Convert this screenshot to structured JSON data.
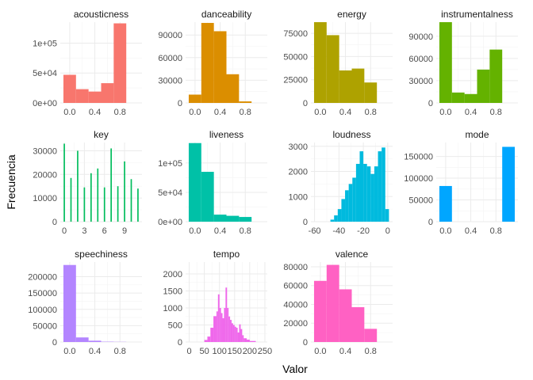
{
  "chart_data": {
    "type": "bar",
    "title": "",
    "xlabel": "Valor",
    "ylabel": "Frecuencia",
    "grid": true,
    "legend": "none",
    "panels": [
      {
        "name": "acousticness",
        "color": "#F8766D",
        "xlim": [
          -0.15,
          1.15
        ],
        "ylim": [
          0,
          135000
        ],
        "xticks": [
          0,
          0.4,
          0.8
        ],
        "xtick_labels": [
          "0.0",
          "0.4",
          "0.8"
        ],
        "yticks": [
          0,
          50000,
          100000
        ],
        "ytick_labels": [
          "0e+00",
          "5e+04",
          "1e+05"
        ],
        "bins": [
          [
            -0.1,
            0.1,
            47000
          ],
          [
            0.1,
            0.3,
            23000
          ],
          [
            0.3,
            0.5,
            19000
          ],
          [
            0.5,
            0.7,
            33000
          ],
          [
            0.7,
            0.9,
            133000
          ]
        ]
      },
      {
        "name": "danceability",
        "color": "#DB8E00",
        "xlim": [
          -0.15,
          1.15
        ],
        "ylim": [
          0,
          107000
        ],
        "xticks": [
          0,
          0.4,
          0.8
        ],
        "xtick_labels": [
          "0.0",
          "0.4",
          "0.8"
        ],
        "yticks": [
          0,
          30000,
          60000,
          90000
        ],
        "ytick_labels": [
          "0",
          "30000",
          "60000",
          "90000"
        ],
        "bins": [
          [
            -0.1,
            0.1,
            11000
          ],
          [
            0.1,
            0.3,
            106000
          ],
          [
            0.3,
            0.5,
            95000
          ],
          [
            0.5,
            0.7,
            38000
          ],
          [
            0.7,
            0.9,
            2000
          ]
        ]
      },
      {
        "name": "energy",
        "color": "#AEA200",
        "xlim": [
          -0.15,
          1.15
        ],
        "ylim": [
          0,
          87000
        ],
        "xticks": [
          0,
          0.4,
          0.8
        ],
        "xtick_labels": [
          "0.0",
          "0.4",
          "0.8"
        ],
        "yticks": [
          0,
          25000,
          50000,
          75000
        ],
        "ytick_labels": [
          "0",
          "25000",
          "50000",
          "75000"
        ],
        "bins": [
          [
            -0.1,
            0.1,
            87000
          ],
          [
            0.1,
            0.3,
            73000
          ],
          [
            0.3,
            0.5,
            35000
          ],
          [
            0.5,
            0.7,
            37000
          ],
          [
            0.7,
            0.9,
            22000
          ]
        ]
      },
      {
        "name": "instrumentalness",
        "color": "#64B200",
        "xlim": [
          -0.15,
          1.15
        ],
        "ylim": [
          0,
          109000
        ],
        "xticks": [
          0,
          0.4,
          0.8
        ],
        "xtick_labels": [
          "0.0",
          "0.4",
          "0.8"
        ],
        "yticks": [
          0,
          30000,
          60000,
          90000
        ],
        "ytick_labels": [
          "0",
          "30000",
          "60000",
          "90000"
        ],
        "bins": [
          [
            -0.1,
            0.1,
            109000
          ],
          [
            0.1,
            0.3,
            14000
          ],
          [
            0.3,
            0.5,
            12000
          ],
          [
            0.5,
            0.7,
            45000
          ],
          [
            0.7,
            0.9,
            72000
          ]
        ]
      },
      {
        "name": "key",
        "color": "#00BD5C",
        "xlim": [
          -0.6,
          11.6
        ],
        "ylim": [
          0,
          33500
        ],
        "xticks": [
          0,
          3,
          6,
          9
        ],
        "xtick_labels": [
          "0",
          "3",
          "6",
          "9"
        ],
        "yticks": [
          0,
          10000,
          20000,
          30000
        ],
        "ytick_labels": [
          "0",
          "10000",
          "20000",
          "30000"
        ],
        "bins": [
          [
            -0.1,
            0.1,
            33000
          ],
          [
            0.9,
            1.1,
            18500
          ],
          [
            1.9,
            2.1,
            30000
          ],
          [
            2.9,
            3.1,
            14500
          ],
          [
            3.9,
            4.1,
            20500
          ],
          [
            4.9,
            5.1,
            22500
          ],
          [
            5.9,
            6.1,
            14500
          ],
          [
            6.9,
            7.1,
            31000
          ],
          [
            7.9,
            8.1,
            15000
          ],
          [
            8.9,
            9.1,
            25500
          ],
          [
            9.9,
            10.1,
            18000
          ],
          [
            10.9,
            11.1,
            14000
          ]
        ]
      },
      {
        "name": "liveness",
        "color": "#00C1A7",
        "xlim": [
          -0.15,
          1.15
        ],
        "ylim": [
          0,
          135000
        ],
        "xticks": [
          0,
          0.4,
          0.8
        ],
        "xtick_labels": [
          "0.0",
          "0.4",
          "0.8"
        ],
        "yticks": [
          0,
          50000,
          100000
        ],
        "ytick_labels": [
          "0e+00",
          "5e+04",
          "1e+05"
        ],
        "bins": [
          [
            -0.1,
            0.1,
            134000
          ],
          [
            0.1,
            0.3,
            85000
          ],
          [
            0.3,
            0.5,
            12000
          ],
          [
            0.5,
            0.7,
            10000
          ],
          [
            0.7,
            0.9,
            8000
          ]
        ]
      },
      {
        "name": "loudness",
        "color": "#00BADE",
        "xlim": [
          -63,
          4
        ],
        "ylim": [
          0,
          3150
        ],
        "xticks": [
          -60,
          -40,
          -20,
          0
        ],
        "xtick_labels": [
          "-60",
          "-40",
          "-20",
          "0"
        ],
        "yticks": [
          0,
          1000,
          2000,
          3000
        ],
        "ytick_labels": [
          "0",
          "1000",
          "2000",
          "3000"
        ],
        "bins": [
          [
            -47,
            -44,
            80
          ],
          [
            -44,
            -41,
            250
          ],
          [
            -41,
            -38,
            500
          ],
          [
            -38,
            -35,
            900
          ],
          [
            -35,
            -32,
            1250
          ],
          [
            -32,
            -29,
            1500
          ],
          [
            -29,
            -26,
            1750
          ],
          [
            -26,
            -23,
            2300
          ],
          [
            -23,
            -20,
            2800
          ],
          [
            -20,
            -17,
            2300
          ],
          [
            -17,
            -14,
            2200
          ],
          [
            -14,
            -11,
            1900
          ],
          [
            -11,
            -8,
            2200
          ],
          [
            -8,
            -5,
            2800
          ],
          [
            -5,
            -2,
            2950
          ],
          [
            -2,
            1,
            500
          ]
        ]
      },
      {
        "name": "mode",
        "color": "#00A6FF",
        "xlim": [
          -0.15,
          1.15
        ],
        "ylim": [
          0,
          182000
        ],
        "xticks": [
          0,
          0.4,
          0.8
        ],
        "xtick_labels": [
          "0.0",
          "0.4",
          "0.8"
        ],
        "yticks": [
          0,
          50000,
          100000,
          150000
        ],
        "ytick_labels": [
          "0",
          "50000",
          "100000",
          "150000"
        ],
        "bins": [
          [
            -0.1,
            0.1,
            82000
          ],
          [
            0.9,
            1.1,
            172000
          ]
        ]
      },
      {
        "name": "speechiness",
        "color": "#B385FF",
        "xlim": [
          -0.15,
          1.15
        ],
        "ylim": [
          0,
          245000
        ],
        "xticks": [
          0,
          0.4,
          0.8
        ],
        "xtick_labels": [
          "0.0",
          "0.4",
          "0.8"
        ],
        "yticks": [
          0,
          50000,
          100000,
          150000,
          200000
        ],
        "ytick_labels": [
          "0",
          "50000",
          "100000",
          "150000",
          "200000"
        ],
        "bins": [
          [
            -0.1,
            0.1,
            236000
          ],
          [
            0.1,
            0.3,
            14000
          ],
          [
            0.3,
            0.5,
            4000
          ],
          [
            0.5,
            0.7,
            1000
          ],
          [
            0.7,
            0.9,
            500
          ]
        ]
      },
      {
        "name": "tempo",
        "color": "#EF67EB",
        "xlim": [
          -12,
          258
        ],
        "ylim": [
          0,
          2350
        ],
        "xticks": [
          0,
          50,
          100,
          150,
          200,
          250
        ],
        "xtick_labels": [
          "0",
          "50",
          "100",
          "150",
          "200",
          "250"
        ],
        "yticks": [
          0,
          500,
          1000,
          1500,
          2000
        ],
        "ytick_labels": [
          "0",
          "500",
          "1000",
          "1500",
          "2000"
        ],
        "bins": [
          [
            50,
            60,
            60
          ],
          [
            60,
            70,
            160
          ],
          [
            70,
            80,
            420
          ],
          [
            80,
            90,
            760
          ],
          [
            90,
            95,
            900
          ],
          [
            95,
            100,
            1400
          ],
          [
            100,
            105,
            1000
          ],
          [
            105,
            110,
            850
          ],
          [
            110,
            115,
            700
          ],
          [
            115,
            120,
            1000
          ],
          [
            120,
            125,
            1600
          ],
          [
            125,
            130,
            1000
          ],
          [
            130,
            135,
            750
          ],
          [
            135,
            140,
            650
          ],
          [
            140,
            145,
            550
          ],
          [
            145,
            150,
            500
          ],
          [
            150,
            155,
            450
          ],
          [
            155,
            160,
            420
          ],
          [
            160,
            165,
            280
          ],
          [
            165,
            170,
            520
          ],
          [
            170,
            175,
            380
          ],
          [
            175,
            180,
            200
          ],
          [
            180,
            190,
            110
          ],
          [
            190,
            200,
            70
          ],
          [
            200,
            220,
            30
          ]
        ]
      },
      {
        "name": "valence",
        "color": "#FF61C3",
        "xlim": [
          -0.15,
          1.15
        ],
        "ylim": [
          0,
          85000
        ],
        "xticks": [
          0,
          0.4,
          0.8
        ],
        "xtick_labels": [
          "0.0",
          "0.4",
          "0.8"
        ],
        "yticks": [
          0,
          20000,
          40000,
          60000,
          80000
        ],
        "ytick_labels": [
          "0",
          "20000",
          "40000",
          "60000",
          "80000"
        ],
        "bins": [
          [
            -0.1,
            0.1,
            65000
          ],
          [
            0.1,
            0.3,
            82000
          ],
          [
            0.3,
            0.5,
            56000
          ],
          [
            0.5,
            0.7,
            37000
          ],
          [
            0.7,
            0.9,
            14000
          ]
        ]
      }
    ]
  }
}
